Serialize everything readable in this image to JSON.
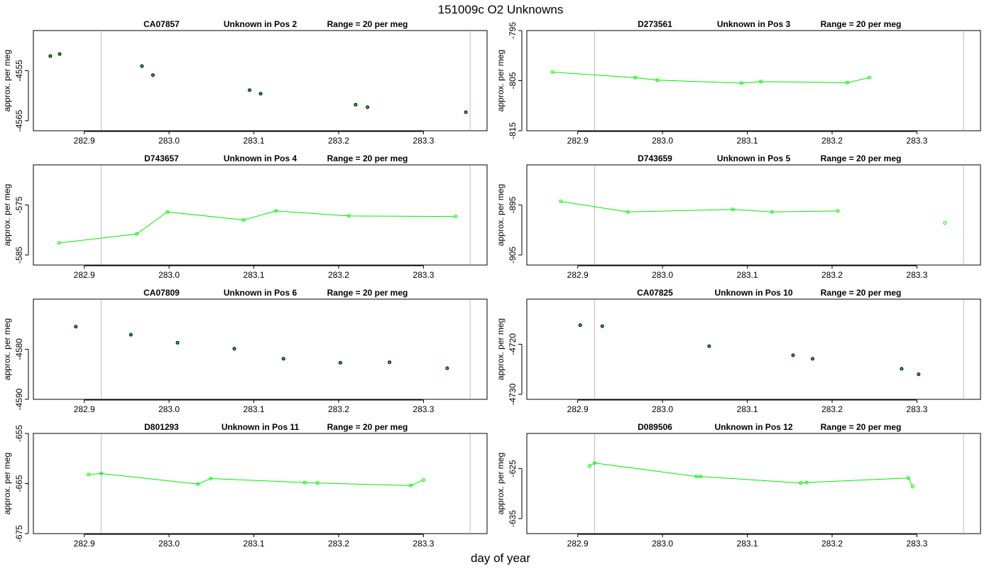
{
  "title": "151009c  O2 Unknowns",
  "xlabel": "day of year",
  "colors": {
    "line": "#00ee00",
    "point_green": "#00ee00",
    "point_black": "#000000",
    "vline": "#bebebe"
  },
  "chart_data": [
    {
      "type": "scatter",
      "sample": "CA07857",
      "position": "Unknown in Pos 2",
      "range": "Range = 20 per meg",
      "ylabel": "approx. per meg",
      "xlim": [
        282.84,
        283.375
      ],
      "ylim": [
        -4567,
        -4547
      ],
      "yticks": [
        -4555,
        -4565
      ],
      "xticks": [
        282.9,
        283.0,
        283.1,
        283.2,
        283.3
      ],
      "vlines": [
        282.92,
        283.355
      ],
      "connected": false,
      "point_color": "black",
      "x": [
        282.86,
        282.871,
        282.968,
        282.981,
        283.095,
        283.108,
        283.22,
        283.234,
        283.35
      ],
      "y": [
        -4552.1,
        -4551.7,
        -4554.1,
        -4555.9,
        -4558.9,
        -4559.6,
        -4561.8,
        -4562.3,
        -4563.3
      ]
    },
    {
      "type": "line",
      "sample": "D273561",
      "position": "Unknown in Pos 3",
      "range": "Range = 20 per meg",
      "ylabel": "approx. per meg",
      "xlim": [
        282.84,
        283.375
      ],
      "ylim": [
        -815,
        -795
      ],
      "yticks": [
        -795,
        -805,
        -815
      ],
      "xticks": [
        282.9,
        283.0,
        283.1,
        283.2,
        283.3
      ],
      "vlines": [
        282.92,
        283.355
      ],
      "connected": true,
      "point_color": "green",
      "x": [
        282.87,
        282.968,
        282.994,
        283.093,
        283.116,
        283.218,
        283.244
      ],
      "y": [
        -803.3,
        -804.4,
        -804.9,
        -805.5,
        -805.2,
        -805.4,
        -804.4
      ]
    },
    {
      "type": "line",
      "sample": "D743657",
      "position": "Unknown in Pos 4",
      "range": "Range = 20 per meg",
      "ylabel": "approx. per meg",
      "xlim": [
        282.84,
        283.375
      ],
      "ylim": [
        -587,
        -567
      ],
      "yticks": [
        -575,
        -585
      ],
      "xticks": [
        282.9,
        283.0,
        283.1,
        283.2,
        283.3
      ],
      "vlines": [
        282.92,
        283.355
      ],
      "connected": true,
      "point_color": "green",
      "x": [
        282.87,
        282.962,
        282.998,
        283.088,
        283.126,
        283.212,
        283.338
      ],
      "y": [
        -582.6,
        -580.8,
        -576.4,
        -578.0,
        -576.2,
        -577.2,
        -577.3
      ]
    },
    {
      "type": "line",
      "sample": "D743659",
      "position": "Unknown in Pos 5",
      "range": "Range = 20 per meg",
      "ylabel": "approx. per meg",
      "xlim": [
        282.84,
        283.375
      ],
      "ylim": [
        -907,
        -887
      ],
      "yticks": [
        -895,
        -905
      ],
      "xticks": [
        282.9,
        283.0,
        283.1,
        283.2,
        283.3
      ],
      "vlines": [
        282.92,
        283.355
      ],
      "connected": true,
      "connect_count": 5,
      "point_color": "green",
      "x": [
        282.88,
        282.959,
        283.083,
        283.129,
        283.207,
        283.333
      ],
      "y": [
        -894.3,
        -896.4,
        -895.9,
        -896.4,
        -896.2,
        -898.6
      ]
    },
    {
      "type": "scatter",
      "sample": "CA07809",
      "position": "Unknown in Pos 6",
      "range": "Range = 20 per meg",
      "ylabel": "approx. per meg",
      "xlim": [
        282.84,
        283.375
      ],
      "ylim": [
        -4590,
        -4570
      ],
      "yticks": [
        -4580,
        -4590
      ],
      "xticks": [
        282.9,
        283.0,
        283.1,
        283.2,
        283.3
      ],
      "vlines": [
        282.92,
        283.355
      ],
      "connected": false,
      "point_color": "black",
      "x": [
        282.89,
        282.955,
        283.01,
        283.077,
        283.135,
        283.202,
        283.26,
        283.328
      ],
      "y": [
        -4575.5,
        -4577.1,
        -4578.7,
        -4579.9,
        -4581.9,
        -4582.7,
        -4582.6,
        -4583.8
      ]
    },
    {
      "type": "scatter",
      "sample": "CA07825",
      "position": "Unknown in Pos 10",
      "range": "Range = 20 per meg",
      "ylabel": "approx. per meg",
      "xlim": [
        282.84,
        283.375
      ],
      "ylim": [
        -4731,
        -4711
      ],
      "yticks": [
        -4720,
        -4730
      ],
      "xticks": [
        282.9,
        283.0,
        283.1,
        283.2,
        283.3
      ],
      "vlines": [
        282.92,
        283.355
      ],
      "connected": false,
      "point_color": "black",
      "x": [
        282.903,
        282.929,
        283.055,
        283.154,
        283.177,
        283.282,
        283.302
      ],
      "y": [
        -4716.2,
        -4716.4,
        -4720.4,
        -4722.2,
        -4722.9,
        -4724.9,
        -4726.0
      ]
    },
    {
      "type": "line",
      "sample": "D801293",
      "position": "Unknown in Pos 11",
      "range": "Range = 20 per meg",
      "ylabel": "approx. per meg",
      "xlim": [
        282.84,
        283.375
      ],
      "ylim": [
        -675,
        -655
      ],
      "yticks": [
        -655,
        -665,
        -675
      ],
      "xticks": [
        282.9,
        283.0,
        283.1,
        283.2,
        283.3
      ],
      "vlines": [
        282.92,
        283.355
      ],
      "connected": true,
      "point_color": "green",
      "x": [
        282.905,
        282.92,
        283.034,
        283.049,
        283.16,
        283.175,
        283.285,
        283.3
      ],
      "y": [
        -663.2,
        -663.0,
        -665.1,
        -664.0,
        -664.8,
        -664.9,
        -665.4,
        -664.3
      ]
    },
    {
      "type": "line",
      "sample": "D089506",
      "position": "Unknown in Pos 12",
      "range": "Range = 20 per meg",
      "ylabel": "approx. per meg",
      "xlim": [
        282.84,
        283.375
      ],
      "ylim": [
        -638,
        -618
      ],
      "yticks": [
        -625,
        -635
      ],
      "xticks": [
        282.9,
        283.0,
        283.1,
        283.2,
        283.3
      ],
      "vlines": [
        282.92,
        283.355
      ],
      "connected": true,
      "connect_count": 8,
      "point_color": "green",
      "x": [
        282.914,
        282.92,
        283.04,
        283.045,
        283.163,
        283.17,
        283.29,
        283.295
      ],
      "y": [
        -624.5,
        -623.9,
        -626.6,
        -626.6,
        -627.9,
        -627.8,
        -626.9,
        -628.6
      ]
    }
  ]
}
